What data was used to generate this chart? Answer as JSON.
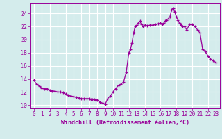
{
  "xlabel": "Windchill (Refroidissement éolien,°C)",
  "background_color": "#d4ecec",
  "grid_color": "#b8dede",
  "line_color": "#990099",
  "marker_color": "#990099",
  "xlim": [
    -0.5,
    23.5
  ],
  "ylim": [
    9.5,
    25.5
  ],
  "yticks": [
    10,
    12,
    14,
    16,
    18,
    20,
    22,
    24
  ],
  "xticks": [
    0,
    1,
    2,
    3,
    4,
    5,
    6,
    7,
    8,
    9,
    10,
    11,
    12,
    13,
    14,
    15,
    16,
    17,
    18,
    19,
    20,
    21,
    22,
    23
  ],
  "hours": [
    0,
    0.33,
    0.67,
    1,
    1.33,
    1.67,
    2,
    2.33,
    2.67,
    3,
    3.33,
    3.67,
    4,
    4.33,
    4.67,
    5,
    5.33,
    5.67,
    6,
    6.33,
    6.67,
    7,
    7.2,
    7.4,
    7.6,
    7.8,
    8,
    8.33,
    8.67,
    9,
    9.33,
    9.67,
    10,
    10.33,
    10.67,
    11,
    11.33,
    11.67,
    12,
    12.2,
    12.4,
    12.6,
    12.8,
    13,
    13.2,
    13.4,
    13.6,
    13.8,
    14,
    14.33,
    14.67,
    15,
    15.33,
    15.67,
    16,
    16.2,
    16.4,
    16.6,
    16.8,
    17,
    17.2,
    17.4,
    17.6,
    17.8,
    18,
    18.2,
    18.4,
    18.6,
    18.8,
    19,
    19.33,
    19.67,
    20,
    20.33,
    20.67,
    21,
    21.33,
    21.67,
    22,
    22.33,
    22.67,
    23
  ],
  "values": [
    13.8,
    13.2,
    12.9,
    12.6,
    12.5,
    12.5,
    12.3,
    12.2,
    12.1,
    12.0,
    12.0,
    11.9,
    11.7,
    11.5,
    11.4,
    11.3,
    11.2,
    11.1,
    11.0,
    11.0,
    11.0,
    11.0,
    10.9,
    10.9,
    10.9,
    10.8,
    10.8,
    10.5,
    10.3,
    10.1,
    11.0,
    11.4,
    12.0,
    12.5,
    13.0,
    13.2,
    13.5,
    15.0,
    18.0,
    18.5,
    19.5,
    21.0,
    22.0,
    22.2,
    22.5,
    22.8,
    22.3,
    22.0,
    22.2,
    22.1,
    22.2,
    22.2,
    22.3,
    22.4,
    22.5,
    22.3,
    22.5,
    22.8,
    23.0,
    23.2,
    23.5,
    24.5,
    24.8,
    24.2,
    23.5,
    23.0,
    22.5,
    22.2,
    22.0,
    22.0,
    21.5,
    22.3,
    22.3,
    22.0,
    21.5,
    21.0,
    18.5,
    18.2,
    17.5,
    17.0,
    16.8,
    16.5
  ]
}
